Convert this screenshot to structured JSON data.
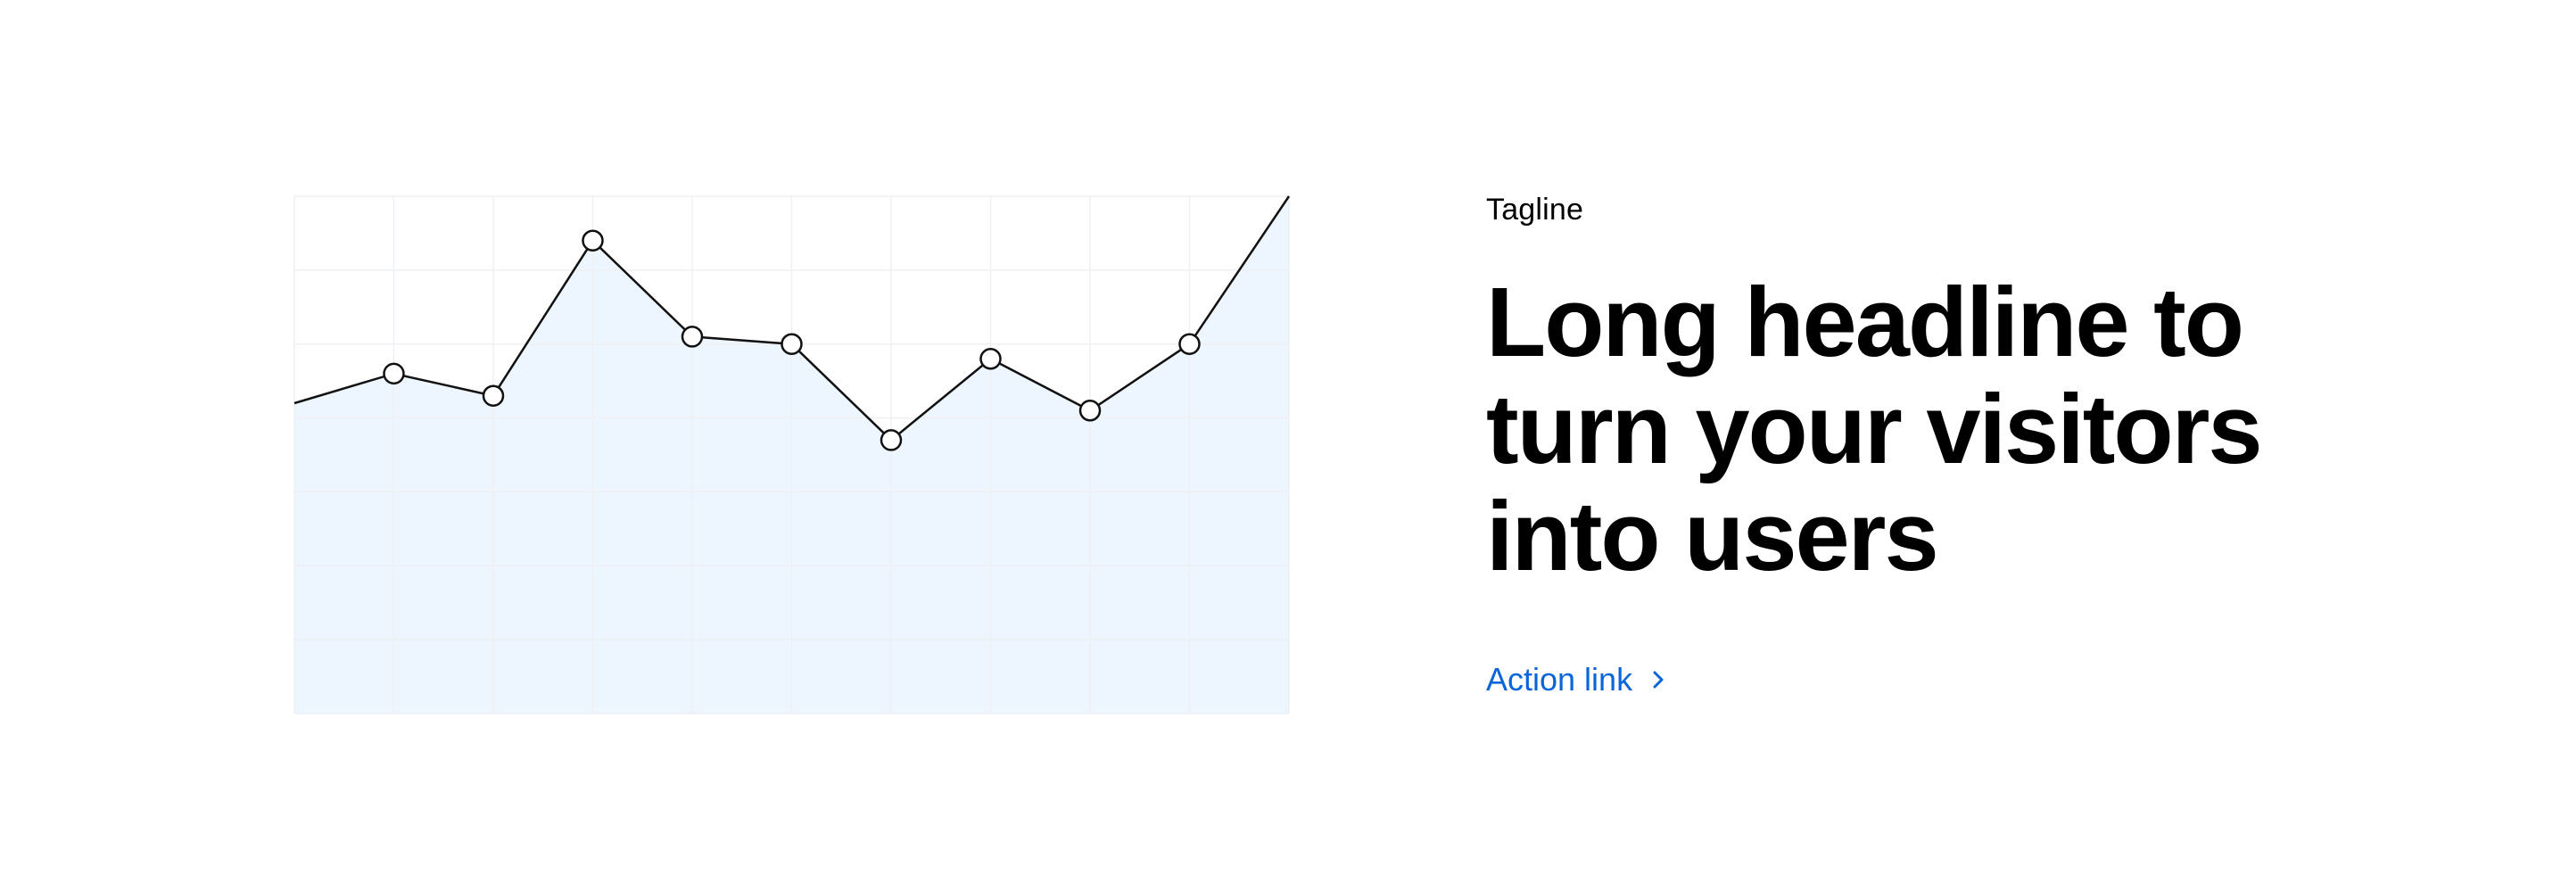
{
  "hero": {
    "tagline": "Tagline",
    "headline": "Long headline to turn your visitors into users",
    "action_link": "Action link",
    "action_icon": "chevron-right-icon"
  },
  "colors": {
    "link": "#0a66d8",
    "line": "#111111",
    "area_fill": "#edf5fe",
    "grid": "#eef0f3",
    "point_fill": "#ffffff"
  },
  "chart_data": {
    "type": "area",
    "x": [
      0,
      1,
      2,
      3,
      4,
      5,
      6,
      7,
      8,
      9,
      10
    ],
    "values": [
      42,
      46,
      43,
      64,
      51,
      50,
      37,
      48,
      41,
      50,
      70
    ],
    "markers": [
      false,
      true,
      true,
      true,
      true,
      true,
      true,
      true,
      true,
      true,
      false
    ],
    "ylim": [
      0,
      70
    ],
    "grid": true,
    "title": "",
    "xlabel": "",
    "ylabel": ""
  }
}
